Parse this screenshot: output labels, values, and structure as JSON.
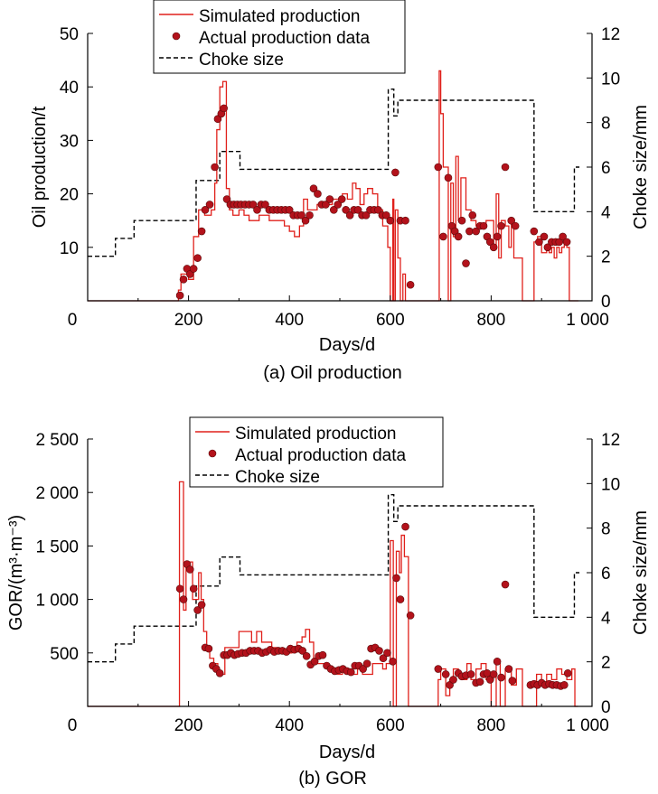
{
  "chart_data": [
    {
      "type": "line",
      "caption": "(a) Oil production",
      "xlabel": "Days/d",
      "ylabel": "Oil production/t",
      "y2label": "Choke size/mm",
      "xlim": [
        0,
        1000
      ],
      "ylim": [
        0,
        50
      ],
      "y2lim": [
        0,
        12
      ],
      "x_ticks": [
        0,
        200,
        400,
        600,
        800,
        1000
      ],
      "x_tick_labels": [
        "0",
        "200",
        "400",
        "600",
        "800",
        "1 000"
      ],
      "y_ticks": [
        10,
        20,
        30,
        40,
        50
      ],
      "y_tick_labels": [
        "10",
        "20",
        "30",
        "40",
        "50"
      ],
      "y2_ticks": [
        0,
        2,
        4,
        6,
        8,
        10,
        12
      ],
      "y2_tick_labels": [
        "0",
        "2",
        "4",
        "6",
        "8",
        "10",
        "12"
      ],
      "legend": {
        "position": "top-center",
        "entries": [
          "Simulated production",
          "Actual production data",
          "Choke size"
        ]
      },
      "colors": {
        "simulated": "#e0201b",
        "actual": "#b3121b",
        "choke": "#000000"
      },
      "series": [
        {
          "name": "Simulated production",
          "type": "step",
          "x": [
            0,
            180,
            185,
            200,
            210,
            220,
            232,
            245,
            252,
            256,
            262,
            268,
            275,
            281,
            288,
            300,
            310,
            320,
            330,
            340,
            350,
            360,
            370,
            380,
            390,
            400,
            410,
            420,
            428,
            436,
            445,
            455,
            465,
            475,
            485,
            495,
            505,
            515,
            525,
            532,
            540,
            548,
            555,
            565,
            575,
            585,
            595,
            600,
            605,
            607,
            610,
            615,
            620,
            625,
            630,
            633,
            640,
            648,
            650,
            695,
            697,
            700,
            705,
            715,
            720,
            725,
            730,
            735,
            740,
            750,
            760,
            770,
            780,
            790,
            800,
            805,
            810,
            815,
            820,
            828,
            835,
            840,
            845,
            855,
            862,
            870,
            878,
            885,
            892,
            900,
            910,
            915,
            920,
            925,
            930,
            935,
            940,
            945,
            950,
            955,
            960,
            965,
            970,
            973
          ],
          "y": [
            0,
            2,
            5,
            4,
            12,
            17,
            16,
            17,
            22,
            32,
            40,
            41,
            21,
            17,
            16,
            17,
            16,
            15,
            15,
            16,
            16,
            15,
            15,
            15,
            14,
            13,
            12,
            14,
            19,
            17,
            17,
            18,
            18,
            18,
            19,
            19,
            20,
            19,
            22,
            21,
            18,
            20,
            21,
            20,
            17,
            14,
            10,
            0,
            19,
            0,
            17,
            8,
            0,
            5,
            0,
            0,
            0,
            0,
            0,
            0,
            43,
            35,
            25,
            0,
            22,
            12,
            27,
            15,
            23,
            17,
            15,
            14,
            14,
            15,
            15,
            10,
            20,
            8,
            15,
            14,
            10,
            15,
            8,
            8,
            0,
            0,
            0,
            11,
            12,
            9,
            10,
            9,
            10,
            8,
            10,
            9,
            10,
            11,
            10,
            0,
            0,
            0,
            0,
            0
          ]
        },
        {
          "name": "Actual production data",
          "type": "scatter",
          "x": [
            183,
            190,
            197,
            203,
            210,
            218,
            226,
            233,
            242,
            252,
            258,
            265,
            270,
            276,
            283,
            290,
            297,
            304,
            312,
            320,
            328,
            336,
            344,
            352,
            360,
            368,
            376,
            384,
            392,
            400,
            408,
            416,
            424,
            432,
            440,
            448,
            456,
            464,
            472,
            480,
            488,
            496,
            504,
            512,
            520,
            528,
            536,
            544,
            552,
            560,
            568,
            576,
            584,
            592,
            600,
            610,
            620,
            630,
            640,
            695,
            705,
            715,
            722,
            728,
            735,
            742,
            750,
            757,
            763,
            770,
            778,
            785,
            792,
            798,
            805,
            812,
            820,
            828,
            840,
            848,
            885,
            895,
            905,
            912,
            920,
            928,
            935,
            942,
            950
          ],
          "y": [
            1,
            4,
            6,
            5,
            6,
            8,
            13,
            17,
            18,
            25,
            34,
            35,
            36,
            19,
            18,
            18,
            18,
            18,
            18,
            18,
            18,
            17,
            18,
            18,
            17,
            17,
            17,
            17,
            17,
            17,
            16,
            16,
            16,
            15,
            16,
            21,
            20,
            18,
            18,
            19,
            17,
            18,
            19,
            17,
            16,
            17,
            17,
            16,
            16,
            17,
            17,
            17,
            16,
            16,
            15,
            24,
            15,
            15,
            3,
            25,
            12,
            23,
            14,
            13,
            12,
            15,
            7,
            13,
            16,
            13,
            14,
            14,
            12,
            11,
            10,
            12,
            14,
            25,
            15,
            14,
            13,
            11,
            12,
            10,
            11,
            11,
            11,
            12,
            11
          ]
        },
        {
          "name": "Choke size",
          "type": "step",
          "axis": "y2",
          "x": [
            0,
            55,
            92,
            215,
            262,
            302,
            596,
            607,
            615,
            885,
            965,
            975
          ],
          "y": [
            2,
            2.8,
            3.6,
            5.4,
            6.7,
            5.9,
            9.5,
            8.3,
            9,
            4,
            6,
            6
          ]
        }
      ]
    },
    {
      "type": "line",
      "caption": "(b) GOR",
      "xlabel": "Days/d",
      "ylabel": "GOR/(m³·m⁻³)",
      "y2label": "Choke size/mm",
      "xlim": [
        0,
        1000
      ],
      "ylim": [
        0,
        2500
      ],
      "y2lim": [
        0,
        12
      ],
      "x_ticks": [
        0,
        200,
        400,
        600,
        800,
        1000
      ],
      "x_tick_labels": [
        "0",
        "200",
        "400",
        "600",
        "800",
        "1 000"
      ],
      "y_ticks": [
        500,
        1000,
        1500,
        2000,
        2500
      ],
      "y_tick_labels": [
        "500",
        "1 000",
        "1 500",
        "2 000",
        "2 500"
      ],
      "y2_ticks": [
        0,
        2,
        4,
        6,
        8,
        10,
        12
      ],
      "y2_tick_labels": [
        "0",
        "2",
        "4",
        "6",
        "8",
        "10",
        "12"
      ],
      "legend": {
        "position": "top-center",
        "entries": [
          "Simulated production",
          "Actual production data",
          "Choke size"
        ]
      },
      "colors": {
        "simulated": "#e0201b",
        "actual": "#b3121b",
        "choke": "#000000"
      },
      "series": [
        {
          "name": "Simulated production",
          "type": "step",
          "x": [
            0,
            182,
            190,
            195,
            202,
            208,
            215,
            220,
            225,
            230,
            236,
            242,
            250,
            258,
            265,
            272,
            280,
            290,
            300,
            305,
            315,
            325,
            335,
            345,
            355,
            365,
            375,
            385,
            395,
            405,
            415,
            425,
            432,
            440,
            448,
            456,
            465,
            475,
            485,
            495,
            505,
            515,
            525,
            535,
            545,
            555,
            565,
            575,
            585,
            592,
            600,
            606,
            612,
            618,
            622,
            628,
            636,
            642,
            650,
            695,
            700,
            710,
            718,
            725,
            735,
            745,
            752,
            760,
            770,
            780,
            790,
            800,
            810,
            818,
            828,
            840,
            850,
            862,
            870,
            878,
            890,
            900,
            910,
            920,
            930,
            940,
            950,
            960,
            966,
            972
          ],
          "y": [
            0,
            2100,
            900,
            1300,
            1350,
            1000,
            1000,
            1250,
            1000,
            700,
            550,
            450,
            400,
            300,
            300,
            550,
            550,
            550,
            700,
            700,
            700,
            600,
            700,
            600,
            600,
            550,
            500,
            500,
            500,
            550,
            600,
            650,
            720,
            600,
            450,
            400,
            400,
            350,
            350,
            300,
            350,
            350,
            300,
            350,
            300,
            300,
            400,
            400,
            350,
            400,
            1550,
            0,
            1450,
            1250,
            1600,
            1400,
            0,
            0,
            0,
            250,
            350,
            100,
            250,
            350,
            300,
            250,
            400,
            250,
            350,
            400,
            250,
            0,
            400,
            0,
            350,
            200,
            350,
            0,
            0,
            0,
            300,
            200,
            300,
            250,
            350,
            300,
            250,
            350,
            0,
            0
          ]
        },
        {
          "name": "Actual production data",
          "type": "scatter",
          "x": [
            183,
            190,
            197,
            203,
            210,
            218,
            226,
            233,
            240,
            248,
            255,
            262,
            270,
            277,
            284,
            291,
            298,
            306,
            314,
            322,
            330,
            338,
            346,
            354,
            362,
            370,
            378,
            386,
            394,
            402,
            410,
            418,
            426,
            434,
            442,
            450,
            458,
            466,
            474,
            482,
            490,
            498,
            506,
            514,
            522,
            530,
            538,
            546,
            554,
            562,
            570,
            578,
            586,
            594,
            605,
            612,
            620,
            630,
            640,
            695,
            710,
            718,
            725,
            735,
            742,
            750,
            760,
            770,
            778,
            785,
            792,
            798,
            805,
            812,
            820,
            828,
            835,
            842,
            878,
            885,
            892,
            900,
            907,
            915,
            922,
            930,
            938,
            945,
            952
          ],
          "y": [
            1100,
            1000,
            1330,
            1280,
            1100,
            900,
            950,
            550,
            540,
            380,
            350,
            310,
            480,
            480,
            500,
            480,
            490,
            500,
            500,
            520,
            520,
            520,
            500,
            510,
            530,
            510,
            520,
            520,
            510,
            540,
            530,
            540,
            520,
            470,
            390,
            420,
            470,
            480,
            380,
            350,
            330,
            340,
            350,
            330,
            320,
            380,
            380,
            350,
            400,
            540,
            550,
            520,
            450,
            500,
            420,
            1200,
            1000,
            1680,
            850,
            350,
            300,
            200,
            250,
            310,
            280,
            290,
            300,
            220,
            230,
            300,
            310,
            250,
            300,
            420,
            270,
            1140,
            350,
            240,
            200,
            210,
            200,
            220,
            200,
            210,
            200,
            200,
            190,
            200,
            310
          ]
        },
        {
          "name": "Choke size",
          "type": "step",
          "axis": "y2",
          "x": [
            0,
            55,
            92,
            215,
            262,
            302,
            596,
            607,
            615,
            885,
            965,
            975
          ],
          "y": [
            2,
            2.8,
            3.6,
            5.4,
            6.7,
            5.9,
            9.5,
            8.3,
            9,
            4,
            6,
            6
          ]
        }
      ]
    }
  ]
}
